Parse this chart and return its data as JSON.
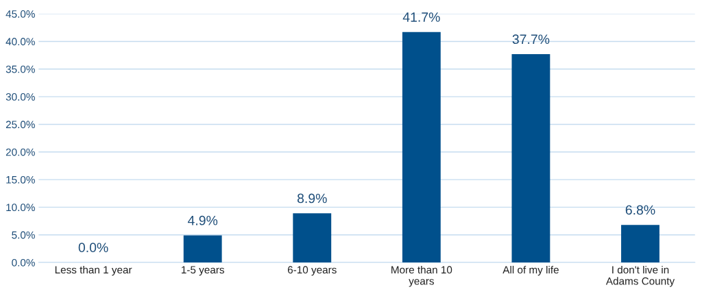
{
  "chart_data": {
    "type": "bar",
    "categories": [
      "Less than 1 year",
      "1-5 years",
      "6-10 years",
      "More than 10\nyears",
      "All of my life",
      "I don't live in\nAdams County"
    ],
    "values": [
      0.0,
      4.9,
      8.9,
      41.7,
      37.7,
      6.8
    ],
    "value_labels": [
      "0.0%",
      "4.9%",
      "8.9%",
      "41.7%",
      "37.7%",
      "6.8%"
    ],
    "color": "#00508c",
    "ylim": [
      0,
      45
    ],
    "yticks": [
      {
        "value": 0,
        "label": "0.0%"
      },
      {
        "value": 5,
        "label": "5.0%"
      },
      {
        "value": 10,
        "label": "10.0%"
      },
      {
        "value": 15,
        "label": "15.0%"
      },
      {
        "value": 20,
        "label": "20.0%"
      },
      {
        "value": 25,
        "label": "25.0%"
      },
      {
        "value": 30,
        "label": "30.0%"
      },
      {
        "value": 35,
        "label": "35.0%"
      },
      {
        "value": 40,
        "label": "40.0%"
      },
      {
        "value": 45,
        "label": "45.0%"
      }
    ],
    "grid": "y"
  }
}
